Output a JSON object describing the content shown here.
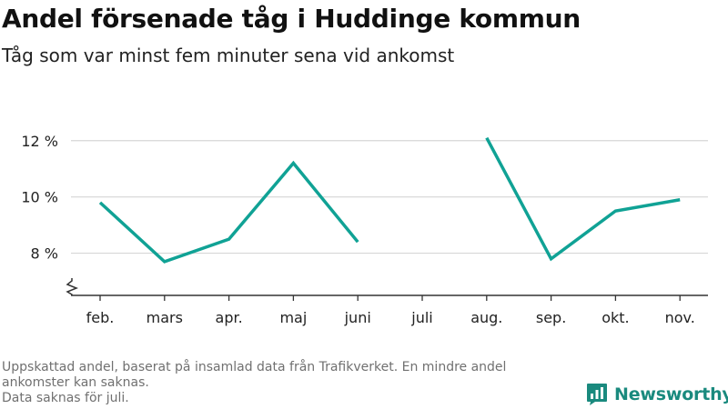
{
  "title": "Andel försenade tåg i Huddinge kommun",
  "subtitle": "Tåg som var minst fem minuter sena vid ankomst",
  "footer": {
    "note": "Uppskattad andel, baserat på insamlad data från Trafikverket. En mindre andel ankomster kan saknas.",
    "missing": "Data saknas för juli."
  },
  "brand": {
    "name": "Newsworthy",
    "icon": "newsworthy-logo-icon",
    "color": "#1a8a7e"
  },
  "colors": {
    "line": "#10a295",
    "grid": "#d6d6d6",
    "axis": "#333333"
  },
  "chart_data": {
    "type": "line",
    "title": "Andel försenade tåg i Huddinge kommun",
    "subtitle": "Tåg som var minst fem minuter sena vid ankomst",
    "categories": [
      "feb.",
      "mars",
      "apr.",
      "maj",
      "juni",
      "juli",
      "aug.",
      "sep.",
      "okt.",
      "nov."
    ],
    "series": [
      {
        "values": [
          9.8,
          7.7,
          8.5,
          11.2,
          8.4,
          null,
          12.1,
          7.8,
          9.5,
          9.9
        ]
      }
    ],
    "yticks": [
      8,
      10,
      12
    ],
    "ytick_labels": [
      "8 %",
      "10 %",
      "12 %"
    ],
    "ylim": [
      6.5,
      12.8
    ],
    "y_axis_break": true,
    "grid": true,
    "xlabel": "",
    "ylabel": ""
  }
}
